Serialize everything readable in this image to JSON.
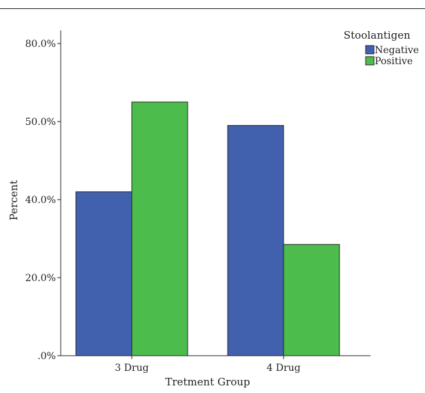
{
  "chart_data": {
    "type": "bar",
    "title": "",
    "xlabel": "Tretment Group",
    "ylabel": "Percent",
    "categories": [
      "3 Drug",
      "4 Drug"
    ],
    "series": [
      {
        "name": "Negative",
        "values": [
          41.0,
          49.5
        ],
        "color": "#4160ad"
      },
      {
        "name": "Positive",
        "values": [
          57.5,
          28.5
        ],
        "color": "#4cbc4c"
      }
    ],
    "y_tick_values": [
      0,
      20,
      40,
      50,
      80
    ],
    "y_tick_labels": [
      ".0%",
      "20.0%",
      "40.0%",
      "50.0%",
      "80.0%"
    ],
    "legend": {
      "title": "Stoolantigen",
      "position": "top-right"
    },
    "grid": false
  }
}
